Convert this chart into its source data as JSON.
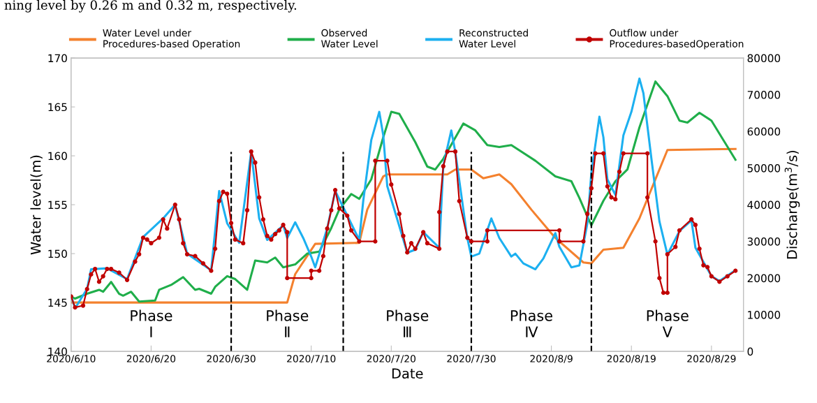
{
  "chart_data": {
    "type": "line",
    "xlabel": "Date",
    "ylabel": "Water level(m)",
    "y2label": "Discharge(m$^{3}$/s)",
    "xlim": [
      "2020-06-10",
      "2020-09-02"
    ],
    "xticks": [
      {
        "value": "2020-06-10",
        "label": "2020/6/10"
      },
      {
        "value": "2020-06-20",
        "label": "2020/6/20"
      },
      {
        "value": "2020-06-30",
        "label": "2020/6/30"
      },
      {
        "value": "2020-07-10",
        "label": "2020/7/10"
      },
      {
        "value": "2020-07-20",
        "label": "2020/7/20"
      },
      {
        "value": "2020-07-30",
        "label": "2020/7/30"
      },
      {
        "value": "2020-08-09",
        "label": "2020/8/9"
      },
      {
        "value": "2020-08-19",
        "label": "2020/8/19"
      },
      {
        "value": "2020-08-29",
        "label": "2020/8/29"
      }
    ],
    "ylim": [
      140,
      170
    ],
    "yticks": [
      140,
      145,
      150,
      155,
      160,
      165,
      170
    ],
    "y2lim": [
      0,
      80000
    ],
    "y2ticks": [
      0,
      10000,
      20000,
      30000,
      40000,
      50000,
      60000,
      70000,
      80000
    ],
    "grid": false,
    "legend": "top",
    "ref_lines": [
      {
        "axis": "x",
        "value": "2020-06-30",
        "color": "#000000",
        "line_style": "dashed"
      },
      {
        "axis": "x",
        "value": "2020-07-14",
        "color": "#000000",
        "line_style": "dashed"
      },
      {
        "axis": "x",
        "value": "2020-07-30",
        "color": "#000000",
        "line_style": "dashed"
      },
      {
        "axis": "x",
        "value": "2020-08-14",
        "color": "#000000",
        "line_style": "dashed"
      }
    ],
    "annotations": [
      "Phase\nⅠ",
      "Phase\nⅡ",
      "Phase\nⅢ",
      "Phase\nⅣ",
      "Phase\nⅤ",
      "ning level by 0.26 m and 0.32 m, respectively."
    ],
    "series": [
      {
        "name": "Water Level under\nProcedures-based Operation",
        "color": "#f4812e",
        "marker": "none",
        "x": [
          "2020-06-10",
          "2020-07-07",
          "2020-07-08",
          "2020-07-10T12:00",
          "2020-07-16",
          "2020-07-17",
          "2020-07-19",
          "2020-07-19T12:00",
          "2020-07-27",
          "2020-07-28",
          "2020-07-30",
          "2020-07-31T12:00",
          "2020-08-02T12:00",
          "2020-08-04",
          "2020-08-06T12:00",
          "2020-08-09T12:00",
          "2020-08-13",
          "2020-08-14",
          "2020-08-15T12:00",
          "2020-08-18",
          "2020-08-20",
          "2020-08-21T12:00",
          "2020-08-23T12:00",
          "2020-09-01"
        ],
        "values": [
          145.0,
          145.0,
          147.9,
          151.0,
          151.1,
          154.5,
          157.9,
          158.1,
          158.1,
          158.6,
          158.6,
          157.7,
          158.1,
          157.1,
          154.5,
          151.6,
          149.1,
          149.0,
          150.4,
          150.6,
          153.6,
          156.6,
          160.6,
          160.7
        ]
      },
      {
        "name": "Observed\nWater Level",
        "color": "#1fae4a",
        "marker": "none",
        "x": [
          "2020-06-10",
          "2020-06-10T12:00",
          "2020-06-12",
          "2020-06-13T12:00",
          "2020-06-14",
          "2020-06-15",
          "2020-06-16",
          "2020-06-16T12:00",
          "2020-06-17T12:00",
          "2020-06-18T12:00",
          "2020-06-20T12:00",
          "2020-06-21",
          "2020-06-22T12:00",
          "2020-06-24",
          "2020-06-25T12:00",
          "2020-06-26",
          "2020-06-27T12:00",
          "2020-06-28",
          "2020-06-29T12:00",
          "2020-06-30T12:00",
          "2020-07-02",
          "2020-07-03",
          "2020-07-04T12:00",
          "2020-07-05T12:00",
          "2020-07-06T12:00",
          "2020-07-08",
          "2020-07-09T12:00",
          "2020-07-11",
          "2020-07-12T12:00",
          "2020-07-13T12:00",
          "2020-07-15",
          "2020-07-16",
          "2020-07-17T12:00",
          "2020-07-19",
          "2020-07-20",
          "2020-07-21",
          "2020-07-23",
          "2020-07-24T12:00",
          "2020-07-25T12:00",
          "2020-07-26T12:00",
          "2020-07-29",
          "2020-07-30T12:00",
          "2020-08-01",
          "2020-08-02T12:00",
          "2020-08-04",
          "2020-08-07",
          "2020-08-09T12:00",
          "2020-08-11T12:00",
          "2020-08-12T12:00",
          "2020-08-13T12:00",
          "2020-08-14",
          "2020-08-15T12:00",
          "2020-08-17",
          "2020-08-18T12:00",
          "2020-08-20",
          "2020-08-22",
          "2020-08-23T12:00",
          "2020-08-25",
          "2020-08-26",
          "2020-08-27T12:00",
          "2020-08-29",
          "2020-08-30T12:00",
          "2020-09-01"
        ],
        "values": [
          145.6,
          145.4,
          145.9,
          146.3,
          146.1,
          147.1,
          145.9,
          145.7,
          146.1,
          145.1,
          145.2,
          146.3,
          146.8,
          147.6,
          146.3,
          146.4,
          145.9,
          146.6,
          147.7,
          147.4,
          146.3,
          149.3,
          149.1,
          149.6,
          148.6,
          148.9,
          150.0,
          150.2,
          152.6,
          154.5,
          156.1,
          155.6,
          157.6,
          161.9,
          164.5,
          164.3,
          161.4,
          158.9,
          158.6,
          159.7,
          163.3,
          162.6,
          161.1,
          160.9,
          161.1,
          159.5,
          157.9,
          157.4,
          155.7,
          153.8,
          152.9,
          155.4,
          157.4,
          158.6,
          162.9,
          167.6,
          166.1,
          163.6,
          163.4,
          164.4,
          163.6,
          161.6,
          159.6
        ]
      },
      {
        "name": "Reconstructed\nWater Level",
        "color": "#1cb0f0",
        "marker": "none",
        "x": [
          "2020-06-10",
          "2020-06-10T12:00",
          "2020-06-12",
          "2020-06-12T12:00",
          "2020-06-14T12:00",
          "2020-06-17",
          "2020-06-19",
          "2020-06-21T12:00",
          "2020-06-23",
          "2020-06-24T12:00",
          "2020-06-27T12:00",
          "2020-06-28T12:00",
          "2020-06-29T12:00",
          "2020-07-01",
          "2020-07-02T12:00",
          "2020-07-03T12:00",
          "2020-07-04T12:00",
          "2020-07-06T12:00",
          "2020-07-07",
          "2020-07-08",
          "2020-07-09",
          "2020-07-10",
          "2020-07-10T12:00",
          "2020-07-12",
          "2020-07-13",
          "2020-07-14T12:00",
          "2020-07-16",
          "2020-07-16T12:00",
          "2020-07-17T12:00",
          "2020-07-18T12:00",
          "2020-07-19",
          "2020-07-19T12:00",
          "2020-07-22",
          "2020-07-23",
          "2020-07-24",
          "2020-07-26",
          "2020-07-26T12:00",
          "2020-07-27T12:00",
          "2020-07-28",
          "2020-07-29T12:00",
          "2020-07-30",
          "2020-07-31",
          "2020-08-01T12:00",
          "2020-08-02T12:00",
          "2020-08-04",
          "2020-08-04T12:00",
          "2020-08-05T12:00",
          "2020-08-07",
          "2020-08-08",
          "2020-08-09T12:00",
          "2020-08-10",
          "2020-08-11T12:00",
          "2020-08-12T12:00",
          "2020-08-13T12:00",
          "2020-08-14",
          "2020-08-15",
          "2020-08-15T12:00",
          "2020-08-16",
          "2020-08-17",
          "2020-08-18",
          "2020-08-19",
          "2020-08-20",
          "2020-08-20T12:00",
          "2020-08-21T12:00",
          "2020-08-22T12:00",
          "2020-08-23T12:00",
          "2020-08-25",
          "2020-08-26T12:00",
          "2020-08-27",
          "2020-08-29",
          "2020-08-30",
          "2020-09-01"
        ],
        "values": [
          145.7,
          144.4,
          146.4,
          148.4,
          148.5,
          147.4,
          151.7,
          153.6,
          155.0,
          150.0,
          148.3,
          156.4,
          153.1,
          151.1,
          160.4,
          153.6,
          151.4,
          152.9,
          151.6,
          153.2,
          151.6,
          149.7,
          148.6,
          152.6,
          156.4,
          153.9,
          151.4,
          155.4,
          161.6,
          164.5,
          162.1,
          156.9,
          150.1,
          150.4,
          152.2,
          150.6,
          159.0,
          162.6,
          160.4,
          151.6,
          149.7,
          150.0,
          153.6,
          151.6,
          149.7,
          150.0,
          149.0,
          148.4,
          149.5,
          152.1,
          150.7,
          148.6,
          148.8,
          153.1,
          158.3,
          164.0,
          161.9,
          157.6,
          156.0,
          162.1,
          164.5,
          167.9,
          166.4,
          159.7,
          153.3,
          149.9,
          152.3,
          153.4,
          150.6,
          147.7,
          147.2,
          148.3
        ]
      },
      {
        "name": "Outflow under\nProcedures-basedOperation",
        "color": "#c00000",
        "marker": "circle",
        "axis": "y2",
        "x": [
          "2020-06-10",
          "2020-06-10T12:00",
          "2020-06-11T12:00",
          "2020-06-12",
          "2020-06-12T12:00",
          "2020-06-13",
          "2020-06-13T12:00",
          "2020-06-14",
          "2020-06-14T12:00",
          "2020-06-15",
          "2020-06-16",
          "2020-06-17",
          "2020-06-18",
          "2020-06-18T12:00",
          "2020-06-19",
          "2020-06-19T12:00",
          "2020-06-20",
          "2020-06-21",
          "2020-06-21T12:00",
          "2020-06-22",
          "2020-06-23",
          "2020-06-23T12:00",
          "2020-06-24",
          "2020-06-24T12:00",
          "2020-06-25T12:00",
          "2020-06-26T12:00",
          "2020-06-27T12:00",
          "2020-06-28",
          "2020-06-28T12:00",
          "2020-06-29",
          "2020-06-29T12:00",
          "2020-06-30",
          "2020-06-30T12:00",
          "2020-07-01T12:00",
          "2020-07-02",
          "2020-07-02T12:00",
          "2020-07-03",
          "2020-07-03T12:00",
          "2020-07-04",
          "2020-07-04T12:00",
          "2020-07-05",
          "2020-07-05T12:00",
          "2020-07-06",
          "2020-07-06T12:00",
          "2020-07-07",
          "2020-07-07",
          "2020-07-10",
          "2020-07-10",
          "2020-07-11",
          "2020-07-11T12:00",
          "2020-07-12",
          "2020-07-12T12:00",
          "2020-07-13",
          "2020-07-13T12:00",
          "2020-07-14T12:00",
          "2020-07-15",
          "2020-07-16",
          "2020-07-18",
          "2020-07-18",
          "2020-07-19T12:00",
          "2020-07-20",
          "2020-07-21",
          "2020-07-21T12:00",
          "2020-07-22",
          "2020-07-22T12:00",
          "2020-07-23",
          "2020-07-24",
          "2020-07-24T12:00",
          "2020-07-26",
          "2020-07-26",
          "2020-07-26T12:00",
          "2020-07-27",
          "2020-07-28",
          "2020-07-28T12:00",
          "2020-07-29T12:00",
          "2020-07-30",
          "2020-08-01",
          "2020-08-01",
          "2020-08-10",
          "2020-08-10",
          "2020-08-13",
          "2020-08-13T12:00",
          "2020-08-14",
          "2020-08-14T12:00",
          "2020-08-15T12:00",
          "2020-08-16",
          "2020-08-16T12:00",
          "2020-08-17",
          "2020-08-17T12:00",
          "2020-08-18",
          "2020-08-21",
          "2020-08-21",
          "2020-08-22",
          "2020-08-22T12:00",
          "2020-08-23",
          "2020-08-23T12:00",
          "2020-08-23T12:00",
          "2020-08-24T12:00",
          "2020-08-25",
          "2020-08-26T12:00",
          "2020-08-27",
          "2020-08-27T12:00",
          "2020-08-28",
          "2020-08-28T12:00",
          "2020-08-29",
          "2020-08-30",
          "2020-08-31",
          "2020-09-01"
        ],
        "values": [
          15000,
          12000,
          12500,
          17000,
          21000,
          22500,
          19000,
          20500,
          22500,
          22500,
          21500,
          19500,
          24500,
          26500,
          31000,
          30500,
          29500,
          31000,
          36000,
          33500,
          40000,
          36000,
          29500,
          26500,
          26000,
          24000,
          22000,
          28000,
          41000,
          43500,
          43000,
          35000,
          30500,
          29500,
          38500,
          54500,
          51500,
          42000,
          36000,
          31500,
          30500,
          32000,
          33000,
          34500,
          32500,
          20000,
          20000,
          22000,
          22000,
          26000,
          33500,
          38500,
          44000,
          39000,
          37000,
          33000,
          30000,
          30000,
          52000,
          52000,
          45500,
          37500,
          31500,
          27000,
          29500,
          28000,
          32500,
          29500,
          28000,
          38000,
          50500,
          54500,
          54500,
          41000,
          31000,
          30000,
          30000,
          33000,
          33000,
          30000,
          30000,
          37500,
          44500,
          54000,
          54000,
          45000,
          42000,
          41500,
          49000,
          54000,
          54000,
          42000,
          30000,
          20000,
          16000,
          16000,
          26500,
          28500,
          33000,
          36000,
          34500,
          28000,
          23500,
          23000,
          20500,
          19000,
          20500,
          22000
        ]
      }
    ]
  }
}
